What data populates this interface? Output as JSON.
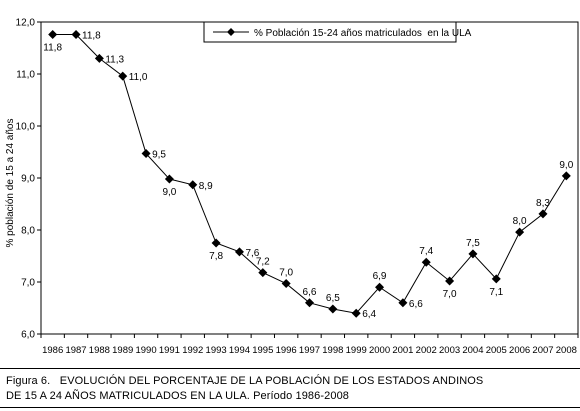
{
  "chart_data": {
    "type": "line",
    "ylabel": "% población de 15 a 24 años",
    "xlabel": "",
    "categories": [
      "1986",
      "1987",
      "1988",
      "1989",
      "1990",
      "1991",
      "1992",
      "1993",
      "1994",
      "1995",
      "1996",
      "1997",
      "1998",
      "1999",
      "2000",
      "2001",
      "2002",
      "2003",
      "2004",
      "2005",
      "2006",
      "2007",
      "2008"
    ],
    "series": [
      {
        "name": "% Población 15-24 años matriculados  en la ULA",
        "values": [
          11.76,
          11.76,
          11.3,
          10.96,
          9.47,
          8.98,
          8.87,
          7.75,
          7.58,
          7.18,
          6.97,
          6.6,
          6.48,
          6.4,
          6.9,
          6.6,
          7.38,
          7.02,
          7.54,
          7.06,
          7.96,
          8.31,
          9.04
        ],
        "labels": [
          "11,8",
          "11,8",
          "11,3",
          "11,0",
          "9,5",
          "9,0",
          "8,9",
          "7,8",
          "7,6",
          "7,2",
          "7,0",
          "6,6",
          "6,5",
          "6,4",
          "6,9",
          "6,6",
          "7,4",
          "7,0",
          "7,5",
          "7,1",
          "8,0",
          "8,3",
          "9,0"
        ],
        "label_side": [
          "below",
          "right",
          "right",
          "right",
          "right",
          "below",
          "right",
          "below",
          "right",
          "above",
          "above",
          "above",
          "above",
          "right",
          "above",
          "right",
          "above",
          "below",
          "above",
          "below",
          "above",
          "above",
          "above"
        ]
      }
    ],
    "ylim": [
      6.0,
      12.0
    ],
    "yticks": [
      6.0,
      7.0,
      8.0,
      9.0,
      10.0,
      11.0,
      12.0
    ],
    "ytick_labels": [
      "6,0",
      "7,0",
      "8,0",
      "9,0",
      "10,0",
      "11,0",
      "12,0"
    ],
    "grid": false,
    "legend_position": "top-right",
    "marker": "diamond",
    "color": "#000000"
  },
  "caption": {
    "line1": "Figura 6.   EVOLUCIÓN DEL PORCENTAJE DE LA POBLACIÓN DE LOS ESTADOS ANDINOS",
    "line2": "DE 15 A 24 AÑOS MATRICULADOS EN LA ULA. Período 1986-2008"
  }
}
